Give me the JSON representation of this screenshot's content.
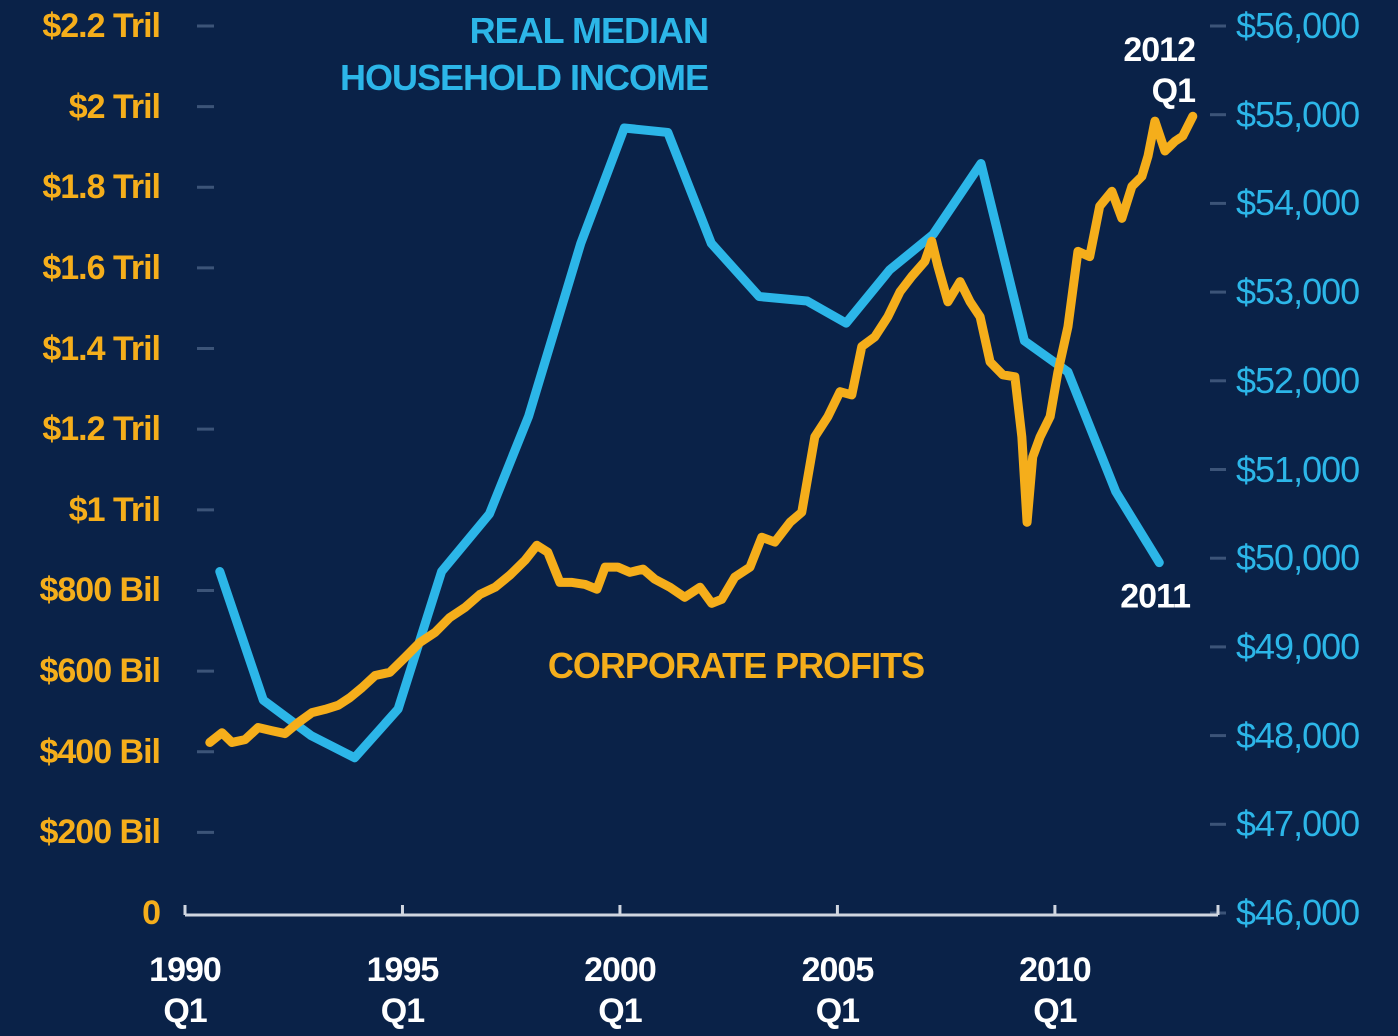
{
  "chart_data": {
    "type": "line",
    "xlim": [
      1990,
      2013.75
    ],
    "xticks": [
      {
        "value": 1990,
        "label": "1990\nQ1"
      },
      {
        "value": 1995,
        "label": "1995\nQ1"
      },
      {
        "value": 2000,
        "label": "2000\nQ1"
      },
      {
        "value": 2005,
        "label": "2005\nQ1"
      },
      {
        "value": 2010,
        "label": "2010\nQ1"
      }
    ],
    "ylim": [
      0,
      2200
    ],
    "yticks": [
      0,
      {
        "value": 200,
        "label": "$200 Bil"
      },
      {
        "value": 400,
        "label": "$400 Bil"
      },
      {
        "value": 600,
        "label": "$600 Bil"
      },
      {
        "value": 800,
        "label": "$800 Bil"
      },
      {
        "value": 1000,
        "label": "$1 Tril"
      },
      {
        "value": 1200,
        "label": "$1.2 Tril"
      },
      {
        "value": 1400,
        "label": "$1.4 Tril"
      },
      {
        "value": 1600,
        "label": "$1.6 Tril"
      },
      {
        "value": 1800,
        "label": "$1.8 Tril"
      },
      {
        "value": 2000,
        "label": "$2 Tril"
      },
      {
        "value": 2200,
        "label": "$2.2 Tril"
      }
    ],
    "y2lim": [
      46000,
      56000
    ],
    "y2ticks": [
      {
        "value": 46000,
        "label": "$46,000"
      },
      {
        "value": 47000,
        "label": "$47,000"
      },
      {
        "value": 48000,
        "label": "$48,000"
      },
      {
        "value": 49000,
        "label": "$49,000"
      },
      {
        "value": 50000,
        "label": "$50,000"
      },
      {
        "value": 51000,
        "label": "$51,000"
      },
      {
        "value": 52000,
        "label": "$52,000"
      },
      {
        "value": 53000,
        "label": "$53,000"
      },
      {
        "value": 54000,
        "label": "$54,000"
      },
      {
        "value": 55000,
        "label": "$55,000"
      },
      {
        "value": 56000,
        "label": "$56,000"
      }
    ],
    "series": [
      {
        "name": "REAL MEDIAN\nHOUSEHOLD INCOME",
        "color": "#2cb6e8",
        "axis": "y2",
        "x": [
          1990.8,
          1991.8,
          1992.9,
          1993.9,
          1994.9,
          1995.9,
          1997.0,
          1997.9,
          1999.1,
          2000.1,
          2001.1,
          2002.1,
          2003.2,
          2004.3,
          2005.2,
          2006.2,
          2007.2,
          2008.3,
          2009.3,
          2010.3,
          2011.4,
          2012.4
        ],
        "values": [
          49850,
          48400,
          48000,
          47750,
          48300,
          49850,
          50500,
          51600,
          53550,
          54850,
          54800,
          53550,
          52950,
          52900,
          52650,
          53250,
          53650,
          54450,
          52450,
          52100,
          50750,
          49950
        ]
      },
      {
        "name": "CORPORATE PROFITS",
        "color": "#f5ae1b",
        "x": [
          1990.57,
          1990.85,
          1991.08,
          1991.38,
          1991.68,
          1992.0,
          1992.3,
          1992.6,
          1992.92,
          1993.22,
          1993.52,
          1993.79,
          1994.07,
          1994.37,
          1994.71,
          1995.06,
          1995.4,
          1995.75,
          1996.09,
          1996.44,
          1996.78,
          1997.13,
          1997.47,
          1997.82,
          1998.09,
          1998.34,
          1998.62,
          1998.9,
          1999.2,
          1999.47,
          1999.66,
          1999.95,
          2000.23,
          2000.53,
          2000.8,
          2001.15,
          2001.49,
          2001.84,
          2002.11,
          2002.34,
          2002.64,
          2002.99,
          2003.26,
          2003.56,
          2003.91,
          2004.18,
          2004.48,
          2004.78,
          2005.06,
          2005.33,
          2005.56,
          2005.86,
          2006.16,
          2006.44,
          2006.71,
          2007.01,
          2007.17,
          2007.31,
          2007.54,
          2007.82,
          2008.05,
          2008.28,
          2008.51,
          2008.8,
          2009.08,
          2009.24,
          2009.36,
          2009.49,
          2009.66,
          2009.89,
          2010.07,
          2010.3,
          2010.53,
          2010.8,
          2011.03,
          2011.31,
          2011.54,
          2011.77,
          2012.0,
          2012.14,
          2012.3,
          2012.53,
          2012.76,
          2012.94,
          2013.17
        ],
        "values": [
          423,
          447,
          423,
          430,
          460,
          452,
          445,
          472,
          497,
          505,
          515,
          534,
          559,
          589,
          597,
          634,
          671,
          696,
          733,
          758,
          790,
          808,
          838,
          875,
          912,
          895,
          820,
          820,
          815,
          803,
          858,
          858,
          845,
          853,
          828,
          808,
          783,
          808,
          768,
          778,
          833,
          858,
          932,
          920,
          969,
          994,
          1181,
          1231,
          1293,
          1285,
          1405,
          1429,
          1479,
          1541,
          1579,
          1616,
          1666,
          1604,
          1516,
          1566,
          1516,
          1479,
          1367,
          1335,
          1330,
          1181,
          969,
          1131,
          1181,
          1231,
          1342,
          1454,
          1641,
          1628,
          1753,
          1790,
          1723,
          1802,
          1827,
          1877,
          1964,
          1890,
          1914,
          1927,
          1976
        ]
      }
    ],
    "annotations": [
      "2012\nQ1",
      "2011"
    ]
  }
}
